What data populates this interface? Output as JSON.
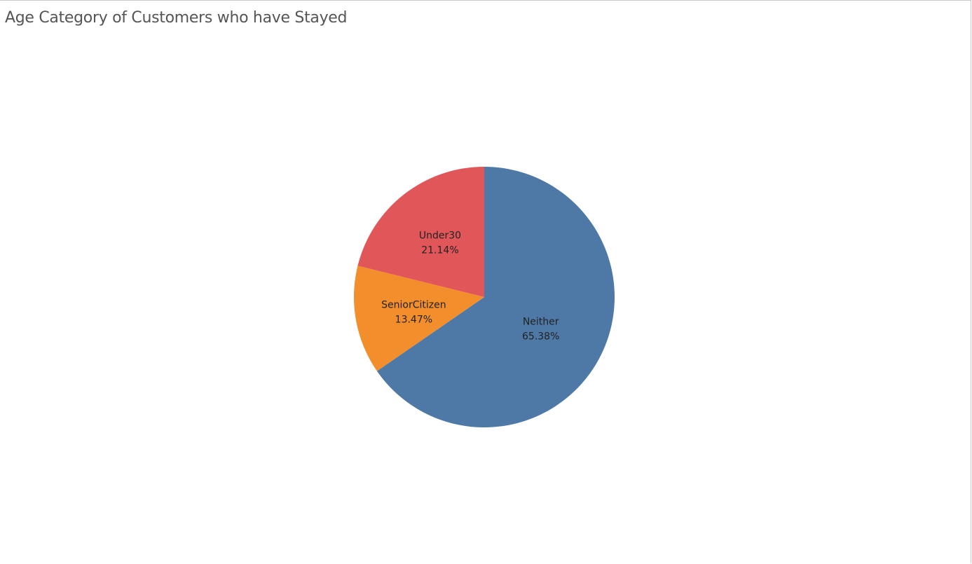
{
  "chart_data": {
    "type": "pie",
    "title": "Age Category of Customers who have Stayed",
    "slices": [
      {
        "label": "Neither",
        "value": 65.38,
        "value_label": "65.38%",
        "color": "#4e79a7"
      },
      {
        "label": "SeniorCitizen",
        "value": 13.47,
        "value_label": "13.47%",
        "color": "#f28e2b"
      },
      {
        "label": "Under30",
        "value": 21.14,
        "value_label": "21.14%",
        "color": "#e15759"
      }
    ],
    "start_angle": "12 o'clock",
    "direction": "clockwise",
    "legend": "none"
  }
}
